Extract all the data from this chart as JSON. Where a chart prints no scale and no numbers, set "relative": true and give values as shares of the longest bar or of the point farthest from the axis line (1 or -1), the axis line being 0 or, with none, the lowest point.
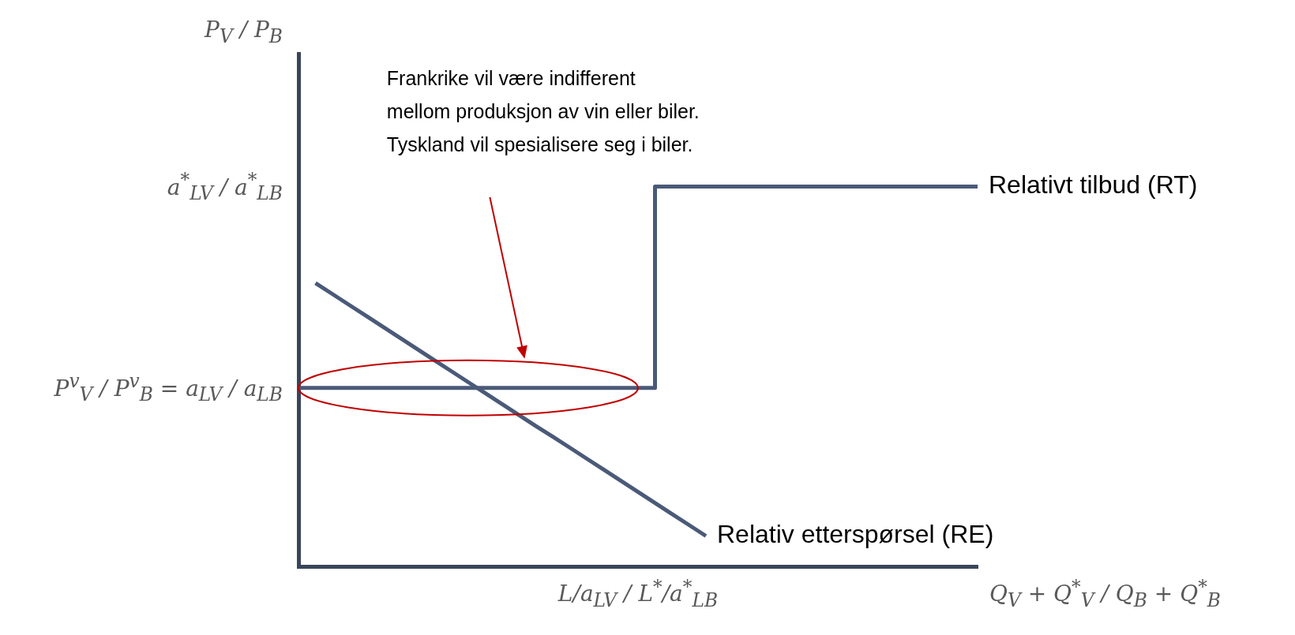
{
  "chart_data": {
    "type": "line",
    "relative": true,
    "xlabel": "Q$_{V}$ + Q$^{*}$$_{V}$ / Q$_{B}$ + Q$^{*}$$_{B}$",
    "legend": false,
    "marker": "none",
    "categories": [
      null,
      null,
      null,
      null,
      null,
      null,
      null,
      null,
      null,
      null,
      null,
      null,
      null,
      null,
      null,
      null,
      null,
      null,
      null,
      null,
      null,
      null,
      null,
      null,
      null,
      null,
      null,
      null,
      null,
      null,
      null,
      null,
      null,
      null,
      null,
      null,
      null,
      null,
      null,
      null,
      null
    ],
    "series": [
      {
        "name": "Relativt tilbud (RT)",
        "type": "step",
        "color": "#4a5a78",
        "values": [
          0.47,
          0.47,
          0.47,
          0.47,
          0.47,
          0.47,
          0.47,
          0.47,
          0.47,
          0.47,
          0.47,
          0.47,
          0.47,
          0.47,
          0.47,
          0.47,
          0.47,
          0.47,
          0.47,
          0.47,
          0.47,
          1,
          1,
          1,
          1,
          1,
          1,
          1,
          1,
          1,
          1,
          1,
          1,
          1,
          1,
          1,
          1,
          1,
          1,
          1,
          1
        ]
      },
      {
        "name": "Relativ etterspørsel (RE)",
        "color": "#4a5a78",
        "values": [
          null,
          0.746,
          0.717,
          0.688,
          0.659,
          0.63,
          0.601,
          0.572,
          0.543,
          0.514,
          0.485,
          0.456,
          0.427,
          0.398,
          0.369,
          0.341,
          0.312,
          0.283,
          0.254,
          0.225,
          0.196,
          0.167,
          0.138,
          0.109,
          0.08,
          null,
          null,
          null,
          null,
          null,
          null,
          null,
          null,
          null,
          null,
          null,
          null,
          null,
          null,
          null,
          null
        ]
      }
    ],
    "annotations": [
      "Frankrike vil være indifferent mellom produksjon av vin eller biler. Tyskland vil spesialisere seg i biler.",
      "a$^{*}$$_{LV}$ / a$^{*}$$_{LB}$",
      "P$^{v}$$_{V}$ / P$^{v}$$_{B}$ = a$_{LV}$ / a$_{LB}$",
      "L/a$_{LV}$ / L$^{*}$/a$^{*}$$_{LB}$",
      "P$_{V}$ / P$_{B}$"
    ]
  }
}
